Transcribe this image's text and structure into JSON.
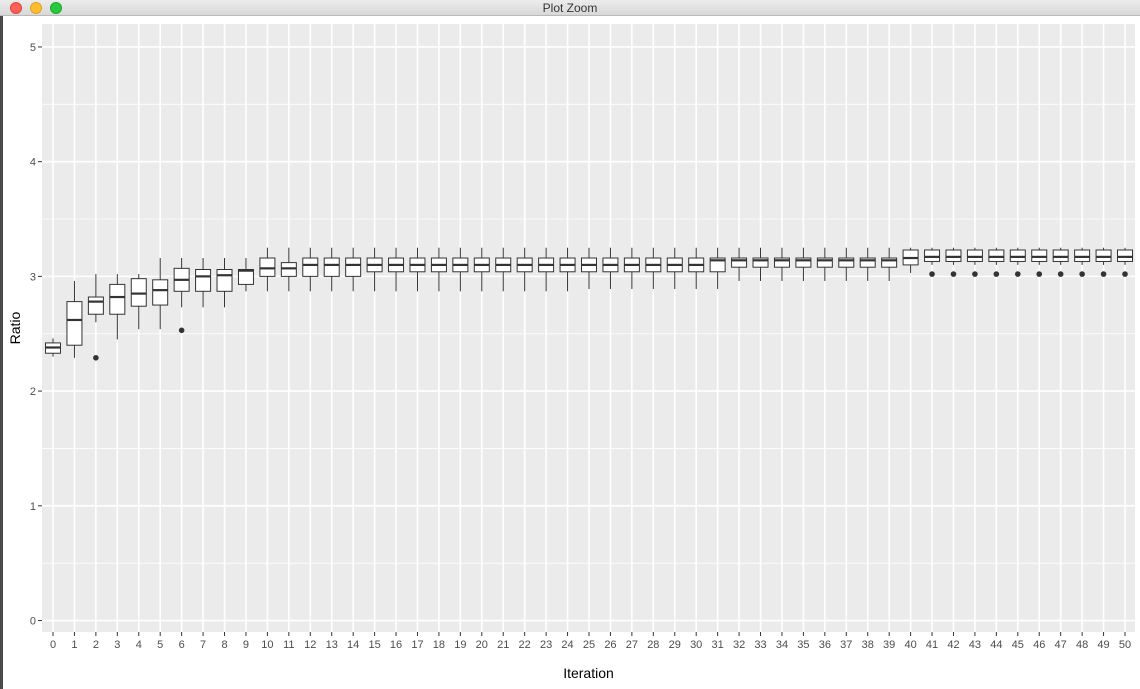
{
  "window": {
    "title": "Plot Zoom"
  },
  "colors": {
    "panel": "#ebebeb",
    "grid": "#ffffff",
    "box_line": "#333333",
    "outlier": "#333333",
    "axis_text": "#4d4d4d"
  },
  "chart_data": {
    "type": "boxplot",
    "title": "",
    "xlabel": "Iteration",
    "ylabel": "Ratio",
    "ylim": [
      -0.1,
      5.2
    ],
    "yticks": [
      0,
      1,
      2,
      3,
      4,
      5
    ],
    "grid": true,
    "categories": [
      "0",
      "1",
      "2",
      "3",
      "4",
      "5",
      "6",
      "7",
      "8",
      "9",
      "10",
      "11",
      "12",
      "13",
      "14",
      "15",
      "16",
      "17",
      "18",
      "19",
      "20",
      "21",
      "22",
      "23",
      "24",
      "25",
      "26",
      "27",
      "28",
      "29",
      "30",
      "31",
      "32",
      "33",
      "34",
      "35",
      "36",
      "37",
      "38",
      "39",
      "40",
      "41",
      "42",
      "43",
      "44",
      "45",
      "46",
      "47",
      "48",
      "49",
      "50"
    ],
    "boxes": [
      {
        "x": "0",
        "whisker_low": 2.3,
        "q1": 2.33,
        "median": 2.38,
        "q3": 2.42,
        "whisker_high": 2.46,
        "outliers": []
      },
      {
        "x": "1",
        "whisker_low": 2.29,
        "q1": 2.4,
        "median": 2.62,
        "q3": 2.78,
        "whisker_high": 2.96,
        "outliers": []
      },
      {
        "x": "2",
        "whisker_low": 2.6,
        "q1": 2.67,
        "median": 2.78,
        "q3": 2.82,
        "whisker_high": 3.02,
        "outliers": [
          2.29
        ]
      },
      {
        "x": "3",
        "whisker_low": 2.45,
        "q1": 2.67,
        "median": 2.82,
        "q3": 2.93,
        "whisker_high": 3.02,
        "outliers": []
      },
      {
        "x": "4",
        "whisker_low": 2.54,
        "q1": 2.74,
        "median": 2.85,
        "q3": 2.98,
        "whisker_high": 3.02,
        "outliers": []
      },
      {
        "x": "5",
        "whisker_low": 2.54,
        "q1": 2.75,
        "median": 2.88,
        "q3": 2.97,
        "whisker_high": 3.16,
        "outliers": []
      },
      {
        "x": "6",
        "whisker_low": 2.73,
        "q1": 2.87,
        "median": 2.97,
        "q3": 3.07,
        "whisker_high": 3.16,
        "outliers": [
          2.53
        ]
      },
      {
        "x": "7",
        "whisker_low": 2.73,
        "q1": 2.87,
        "median": 3.0,
        "q3": 3.06,
        "whisker_high": 3.16,
        "outliers": []
      },
      {
        "x": "8",
        "whisker_low": 2.73,
        "q1": 2.87,
        "median": 3.01,
        "q3": 3.06,
        "whisker_high": 3.16,
        "outliers": []
      },
      {
        "x": "9",
        "whisker_low": 2.87,
        "q1": 2.93,
        "median": 3.05,
        "q3": 3.06,
        "whisker_high": 3.16,
        "outliers": []
      },
      {
        "x": "10",
        "whisker_low": 2.87,
        "q1": 3.0,
        "median": 3.07,
        "q3": 3.16,
        "whisker_high": 3.25,
        "outliers": []
      },
      {
        "x": "11",
        "whisker_low": 2.87,
        "q1": 3.0,
        "median": 3.07,
        "q3": 3.12,
        "whisker_high": 3.25,
        "outliers": []
      },
      {
        "x": "12",
        "whisker_low": 2.87,
        "q1": 3.0,
        "median": 3.1,
        "q3": 3.16,
        "whisker_high": 3.25,
        "outliers": []
      },
      {
        "x": "13",
        "whisker_low": 2.87,
        "q1": 3.0,
        "median": 3.1,
        "q3": 3.16,
        "whisker_high": 3.25,
        "outliers": []
      },
      {
        "x": "14",
        "whisker_low": 2.87,
        "q1": 3.0,
        "median": 3.1,
        "q3": 3.16,
        "whisker_high": 3.25,
        "outliers": []
      },
      {
        "x": "15",
        "whisker_low": 2.87,
        "q1": 3.04,
        "median": 3.1,
        "q3": 3.16,
        "whisker_high": 3.25,
        "outliers": []
      },
      {
        "x": "16",
        "whisker_low": 2.87,
        "q1": 3.04,
        "median": 3.1,
        "q3": 3.16,
        "whisker_high": 3.25,
        "outliers": []
      },
      {
        "x": "17",
        "whisker_low": 2.87,
        "q1": 3.04,
        "median": 3.1,
        "q3": 3.16,
        "whisker_high": 3.25,
        "outliers": []
      },
      {
        "x": "18",
        "whisker_low": 2.87,
        "q1": 3.04,
        "median": 3.1,
        "q3": 3.16,
        "whisker_high": 3.25,
        "outliers": []
      },
      {
        "x": "19",
        "whisker_low": 2.87,
        "q1": 3.04,
        "median": 3.1,
        "q3": 3.16,
        "whisker_high": 3.25,
        "outliers": []
      },
      {
        "x": "20",
        "whisker_low": 2.87,
        "q1": 3.04,
        "median": 3.1,
        "q3": 3.16,
        "whisker_high": 3.25,
        "outliers": []
      },
      {
        "x": "21",
        "whisker_low": 2.87,
        "q1": 3.04,
        "median": 3.1,
        "q3": 3.16,
        "whisker_high": 3.25,
        "outliers": []
      },
      {
        "x": "22",
        "whisker_low": 2.87,
        "q1": 3.04,
        "median": 3.1,
        "q3": 3.16,
        "whisker_high": 3.25,
        "outliers": []
      },
      {
        "x": "23",
        "whisker_low": 2.87,
        "q1": 3.04,
        "median": 3.1,
        "q3": 3.16,
        "whisker_high": 3.25,
        "outliers": []
      },
      {
        "x": "24",
        "whisker_low": 2.87,
        "q1": 3.04,
        "median": 3.1,
        "q3": 3.16,
        "whisker_high": 3.25,
        "outliers": []
      },
      {
        "x": "25",
        "whisker_low": 2.89,
        "q1": 3.04,
        "median": 3.1,
        "q3": 3.16,
        "whisker_high": 3.25,
        "outliers": []
      },
      {
        "x": "26",
        "whisker_low": 2.89,
        "q1": 3.04,
        "median": 3.1,
        "q3": 3.16,
        "whisker_high": 3.25,
        "outliers": []
      },
      {
        "x": "27",
        "whisker_low": 2.89,
        "q1": 3.04,
        "median": 3.1,
        "q3": 3.16,
        "whisker_high": 3.25,
        "outliers": []
      },
      {
        "x": "28",
        "whisker_low": 2.89,
        "q1": 3.04,
        "median": 3.1,
        "q3": 3.16,
        "whisker_high": 3.25,
        "outliers": []
      },
      {
        "x": "29",
        "whisker_low": 2.89,
        "q1": 3.04,
        "median": 3.1,
        "q3": 3.16,
        "whisker_high": 3.25,
        "outliers": []
      },
      {
        "x": "30",
        "whisker_low": 2.89,
        "q1": 3.04,
        "median": 3.1,
        "q3": 3.16,
        "whisker_high": 3.25,
        "outliers": []
      },
      {
        "x": "31",
        "whisker_low": 2.89,
        "q1": 3.04,
        "median": 3.14,
        "q3": 3.16,
        "whisker_high": 3.25,
        "outliers": []
      },
      {
        "x": "32",
        "whisker_low": 2.96,
        "q1": 3.08,
        "median": 3.14,
        "q3": 3.16,
        "whisker_high": 3.25,
        "outliers": []
      },
      {
        "x": "33",
        "whisker_low": 2.96,
        "q1": 3.08,
        "median": 3.14,
        "q3": 3.16,
        "whisker_high": 3.25,
        "outliers": []
      },
      {
        "x": "34",
        "whisker_low": 2.96,
        "q1": 3.08,
        "median": 3.14,
        "q3": 3.16,
        "whisker_high": 3.25,
        "outliers": []
      },
      {
        "x": "35",
        "whisker_low": 2.96,
        "q1": 3.08,
        "median": 3.14,
        "q3": 3.16,
        "whisker_high": 3.25,
        "outliers": []
      },
      {
        "x": "36",
        "whisker_low": 2.96,
        "q1": 3.08,
        "median": 3.14,
        "q3": 3.16,
        "whisker_high": 3.25,
        "outliers": []
      },
      {
        "x": "37",
        "whisker_low": 2.96,
        "q1": 3.08,
        "median": 3.14,
        "q3": 3.16,
        "whisker_high": 3.25,
        "outliers": []
      },
      {
        "x": "38",
        "whisker_low": 2.96,
        "q1": 3.08,
        "median": 3.14,
        "q3": 3.16,
        "whisker_high": 3.25,
        "outliers": []
      },
      {
        "x": "39",
        "whisker_low": 2.96,
        "q1": 3.08,
        "median": 3.14,
        "q3": 3.16,
        "whisker_high": 3.25,
        "outliers": []
      },
      {
        "x": "40",
        "whisker_low": 3.03,
        "q1": 3.1,
        "median": 3.16,
        "q3": 3.23,
        "whisker_high": 3.25,
        "outliers": []
      },
      {
        "x": "41",
        "whisker_low": 3.1,
        "q1": 3.13,
        "median": 3.17,
        "q3": 3.23,
        "whisker_high": 3.25,
        "outliers": [
          3.02
        ]
      },
      {
        "x": "42",
        "whisker_low": 3.1,
        "q1": 3.13,
        "median": 3.17,
        "q3": 3.23,
        "whisker_high": 3.25,
        "outliers": [
          3.02
        ]
      },
      {
        "x": "43",
        "whisker_low": 3.1,
        "q1": 3.13,
        "median": 3.17,
        "q3": 3.23,
        "whisker_high": 3.25,
        "outliers": [
          3.02
        ]
      },
      {
        "x": "44",
        "whisker_low": 3.1,
        "q1": 3.13,
        "median": 3.17,
        "q3": 3.23,
        "whisker_high": 3.25,
        "outliers": [
          3.02
        ]
      },
      {
        "x": "45",
        "whisker_low": 3.1,
        "q1": 3.13,
        "median": 3.17,
        "q3": 3.23,
        "whisker_high": 3.25,
        "outliers": [
          3.02
        ]
      },
      {
        "x": "46",
        "whisker_low": 3.1,
        "q1": 3.13,
        "median": 3.17,
        "q3": 3.23,
        "whisker_high": 3.25,
        "outliers": [
          3.02
        ]
      },
      {
        "x": "47",
        "whisker_low": 3.1,
        "q1": 3.13,
        "median": 3.17,
        "q3": 3.23,
        "whisker_high": 3.25,
        "outliers": [
          3.02
        ]
      },
      {
        "x": "48",
        "whisker_low": 3.1,
        "q1": 3.13,
        "median": 3.17,
        "q3": 3.23,
        "whisker_high": 3.25,
        "outliers": [
          3.02
        ]
      },
      {
        "x": "49",
        "whisker_low": 3.1,
        "q1": 3.13,
        "median": 3.17,
        "q3": 3.23,
        "whisker_high": 3.25,
        "outliers": [
          3.02
        ]
      },
      {
        "x": "50",
        "whisker_low": 3.1,
        "q1": 3.13,
        "median": 3.17,
        "q3": 3.23,
        "whisker_high": 3.25,
        "outliers": [
          3.02
        ]
      }
    ]
  }
}
